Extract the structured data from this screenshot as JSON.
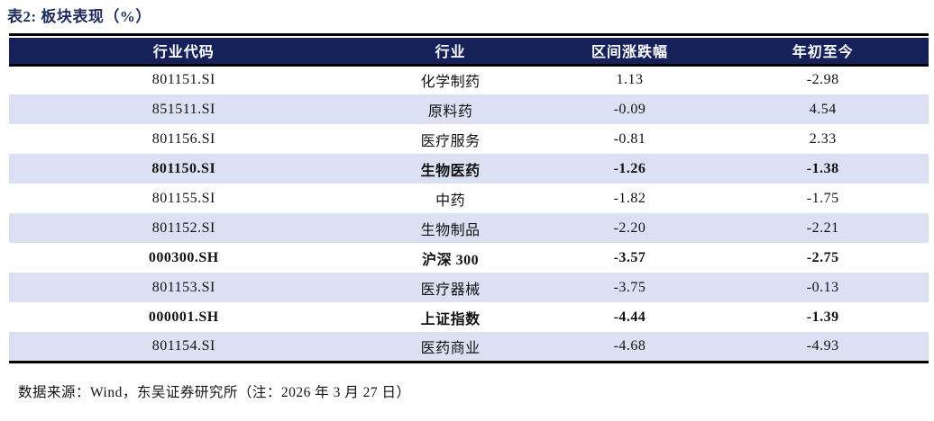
{
  "title": "表2:  板块表现（%）",
  "colors": {
    "header_bg": "#16215a",
    "header_text": "#ffffff",
    "stripe_row_bg": "#dbe1f3",
    "title_text": "#1d2d5e",
    "rule": "#000000"
  },
  "table": {
    "columns": [
      "行业代码",
      "行业",
      "区间涨跌幅",
      "年初至今"
    ],
    "rows": [
      {
        "code": "801151.SI",
        "industry": "化学制药",
        "interval_change": "1.13",
        "ytd": "-2.98",
        "bold": false
      },
      {
        "code": "851511.SI",
        "industry": "原料药",
        "interval_change": "-0.09",
        "ytd": "4.54",
        "bold": false
      },
      {
        "code": "801156.SI",
        "industry": "医疗服务",
        "interval_change": "-0.81",
        "ytd": "2.33",
        "bold": false
      },
      {
        "code": "801150.SI",
        "industry": "生物医药",
        "interval_change": "-1.26",
        "ytd": "-1.38",
        "bold": true
      },
      {
        "code": "801155.SI",
        "industry": "中药",
        "interval_change": "-1.82",
        "ytd": "-1.75",
        "bold": false
      },
      {
        "code": "801152.SI",
        "industry": "生物制品",
        "interval_change": "-2.20",
        "ytd": "-2.21",
        "bold": false
      },
      {
        "code": "000300.SH",
        "industry": "沪深 300",
        "interval_change": "-3.57",
        "ytd": "-2.75",
        "bold": true
      },
      {
        "code": "801153.SI",
        "industry": "医疗器械",
        "interval_change": "-3.75",
        "ytd": "-0.13",
        "bold": false
      },
      {
        "code": "000001.SH",
        "industry": "上证指数",
        "interval_change": "-4.44",
        "ytd": "-1.39",
        "bold": true
      },
      {
        "code": "801154.SI",
        "industry": "医药商业",
        "interval_change": "-4.68",
        "ytd": "-4.93",
        "bold": false
      }
    ]
  },
  "source_note": "数据来源：Wind，东吴证券研究所（注：2026 年 3 月 27 日）"
}
